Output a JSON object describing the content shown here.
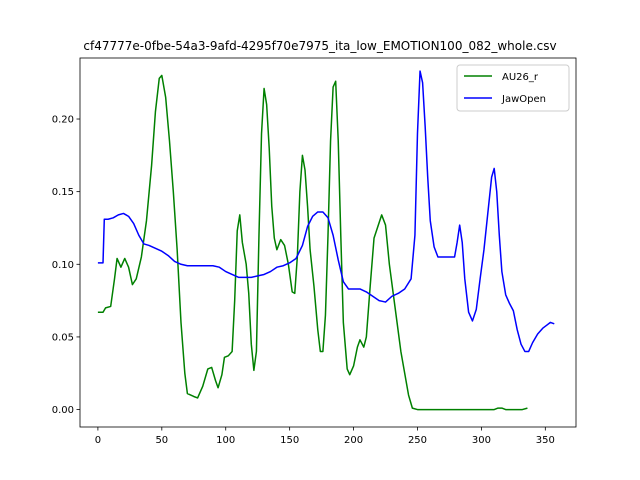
{
  "chart_data": {
    "type": "line",
    "title": "cf47777e-0fbe-54a3-9afd-4295f70e7975_ita_low_EMOTION100_082_whole.csv",
    "xlabel": "",
    "ylabel": "",
    "xlim": [
      -14,
      374
    ],
    "ylim": [
      -0.012,
      0.242
    ],
    "xticks": [
      0,
      50,
      100,
      150,
      200,
      250,
      300,
      350
    ],
    "yticks": [
      0.0,
      0.05,
      0.1,
      0.15,
      0.2
    ],
    "ytick_labels": [
      "0.00",
      "0.05",
      "0.10",
      "0.15",
      "0.20"
    ],
    "grid": false,
    "legend": "top-right",
    "series": [
      {
        "name": "AU26_r",
        "color": "#008000",
        "points": [
          [
            0,
            0.067
          ],
          [
            4,
            0.067
          ],
          [
            6,
            0.07
          ],
          [
            10,
            0.071
          ],
          [
            13,
            0.09
          ],
          [
            15,
            0.104
          ],
          [
            18,
            0.098
          ],
          [
            21,
            0.104
          ],
          [
            24,
            0.098
          ],
          [
            27,
            0.086
          ],
          [
            30,
            0.09
          ],
          [
            34,
            0.105
          ],
          [
            38,
            0.13
          ],
          [
            42,
            0.168
          ],
          [
            45,
            0.205
          ],
          [
            48,
            0.228
          ],
          [
            50,
            0.23
          ],
          [
            53,
            0.215
          ],
          [
            56,
            0.185
          ],
          [
            59,
            0.15
          ],
          [
            62,
            0.11
          ],
          [
            65,
            0.06
          ],
          [
            68,
            0.025
          ],
          [
            70,
            0.011
          ],
          [
            75,
            0.009
          ],
          [
            78,
            0.008
          ],
          [
            82,
            0.016
          ],
          [
            86,
            0.028
          ],
          [
            89,
            0.029
          ],
          [
            92,
            0.02
          ],
          [
            94,
            0.015
          ],
          [
            97,
            0.024
          ],
          [
            99,
            0.036
          ],
          [
            102,
            0.037
          ],
          [
            105,
            0.04
          ],
          [
            107,
            0.075
          ],
          [
            109,
            0.123
          ],
          [
            111,
            0.134
          ],
          [
            113,
            0.115
          ],
          [
            116,
            0.1
          ],
          [
            118,
            0.08
          ],
          [
            120,
            0.045
          ],
          [
            122,
            0.027
          ],
          [
            124,
            0.04
          ],
          [
            126,
            0.12
          ],
          [
            128,
            0.19
          ],
          [
            130,
            0.221
          ],
          [
            132,
            0.21
          ],
          [
            134,
            0.18
          ],
          [
            136,
            0.14
          ],
          [
            138,
            0.118
          ],
          [
            140,
            0.11
          ],
          [
            143,
            0.117
          ],
          [
            146,
            0.113
          ],
          [
            149,
            0.1
          ],
          [
            152,
            0.081
          ],
          [
            154,
            0.08
          ],
          [
            156,
            0.105
          ],
          [
            158,
            0.15
          ],
          [
            160,
            0.175
          ],
          [
            162,
            0.165
          ],
          [
            164,
            0.14
          ],
          [
            166,
            0.11
          ],
          [
            169,
            0.085
          ],
          [
            172,
            0.055
          ],
          [
            174,
            0.04
          ],
          [
            176,
            0.04
          ],
          [
            178,
            0.065
          ],
          [
            180,
            0.12
          ],
          [
            182,
            0.185
          ],
          [
            184,
            0.222
          ],
          [
            186,
            0.226
          ],
          [
            188,
            0.185
          ],
          [
            190,
            0.12
          ],
          [
            192,
            0.06
          ],
          [
            195,
            0.028
          ],
          [
            197,
            0.024
          ],
          [
            200,
            0.03
          ],
          [
            203,
            0.043
          ],
          [
            205,
            0.048
          ],
          [
            208,
            0.043
          ],
          [
            210,
            0.05
          ],
          [
            213,
            0.085
          ],
          [
            216,
            0.118
          ],
          [
            219,
            0.126
          ],
          [
            222,
            0.134
          ],
          [
            225,
            0.127
          ],
          [
            228,
            0.1
          ],
          [
            231,
            0.08
          ],
          [
            234,
            0.06
          ],
          [
            237,
            0.04
          ],
          [
            240,
            0.025
          ],
          [
            243,
            0.01
          ],
          [
            246,
            0.001
          ],
          [
            250,
            0.0
          ],
          [
            260,
            0.0
          ],
          [
            280,
            0.0
          ],
          [
            300,
            0.0
          ],
          [
            310,
            0.0
          ],
          [
            313,
            0.001
          ],
          [
            316,
            0.001
          ],
          [
            319,
            0.0
          ],
          [
            325,
            0.0
          ],
          [
            332,
            0.0
          ],
          [
            336,
            0.001
          ]
        ]
      },
      {
        "name": "JawOpen",
        "color": "#0000ff",
        "points": [
          [
            0,
            0.101
          ],
          [
            3,
            0.101
          ],
          [
            4,
            0.101
          ],
          [
            5,
            0.131
          ],
          [
            8,
            0.131
          ],
          [
            12,
            0.132
          ],
          [
            16,
            0.134
          ],
          [
            20,
            0.135
          ],
          [
            24,
            0.133
          ],
          [
            28,
            0.128
          ],
          [
            32,
            0.12
          ],
          [
            36,
            0.114
          ],
          [
            40,
            0.113
          ],
          [
            45,
            0.111
          ],
          [
            50,
            0.109
          ],
          [
            55,
            0.106
          ],
          [
            60,
            0.102
          ],
          [
            65,
            0.1
          ],
          [
            70,
            0.099
          ],
          [
            80,
            0.099
          ],
          [
            90,
            0.099
          ],
          [
            95,
            0.098
          ],
          [
            100,
            0.095
          ],
          [
            105,
            0.093
          ],
          [
            110,
            0.091
          ],
          [
            115,
            0.091
          ],
          [
            120,
            0.091
          ],
          [
            125,
            0.092
          ],
          [
            130,
            0.093
          ],
          [
            135,
            0.095
          ],
          [
            140,
            0.098
          ],
          [
            145,
            0.099
          ],
          [
            150,
            0.101
          ],
          [
            155,
            0.104
          ],
          [
            160,
            0.113
          ],
          [
            164,
            0.126
          ],
          [
            168,
            0.133
          ],
          [
            172,
            0.136
          ],
          [
            176,
            0.136
          ],
          [
            180,
            0.132
          ],
          [
            184,
            0.12
          ],
          [
            188,
            0.103
          ],
          [
            192,
            0.088
          ],
          [
            196,
            0.083
          ],
          [
            200,
            0.083
          ],
          [
            205,
            0.083
          ],
          [
            210,
            0.081
          ],
          [
            215,
            0.078
          ],
          [
            220,
            0.075
          ],
          [
            225,
            0.074
          ],
          [
            230,
            0.078
          ],
          [
            235,
            0.08
          ],
          [
            240,
            0.083
          ],
          [
            245,
            0.09
          ],
          [
            248,
            0.12
          ],
          [
            250,
            0.19
          ],
          [
            252,
            0.233
          ],
          [
            254,
            0.225
          ],
          [
            256,
            0.195
          ],
          [
            258,
            0.16
          ],
          [
            260,
            0.13
          ],
          [
            263,
            0.112
          ],
          [
            266,
            0.105
          ],
          [
            270,
            0.105
          ],
          [
            275,
            0.105
          ],
          [
            279,
            0.105
          ],
          [
            281,
            0.115
          ],
          [
            283,
            0.127
          ],
          [
            285,
            0.115
          ],
          [
            287,
            0.09
          ],
          [
            290,
            0.067
          ],
          [
            293,
            0.061
          ],
          [
            296,
            0.069
          ],
          [
            299,
            0.09
          ],
          [
            302,
            0.11
          ],
          [
            305,
            0.135
          ],
          [
            308,
            0.16
          ],
          [
            310,
            0.166
          ],
          [
            312,
            0.15
          ],
          [
            314,
            0.12
          ],
          [
            316,
            0.095
          ],
          [
            319,
            0.079
          ],
          [
            322,
            0.073
          ],
          [
            325,
            0.068
          ],
          [
            328,
            0.055
          ],
          [
            331,
            0.045
          ],
          [
            334,
            0.04
          ],
          [
            337,
            0.04
          ],
          [
            340,
            0.046
          ],
          [
            344,
            0.052
          ],
          [
            348,
            0.056
          ],
          [
            351,
            0.058
          ],
          [
            354,
            0.06
          ],
          [
            357,
            0.059
          ]
        ]
      }
    ]
  }
}
